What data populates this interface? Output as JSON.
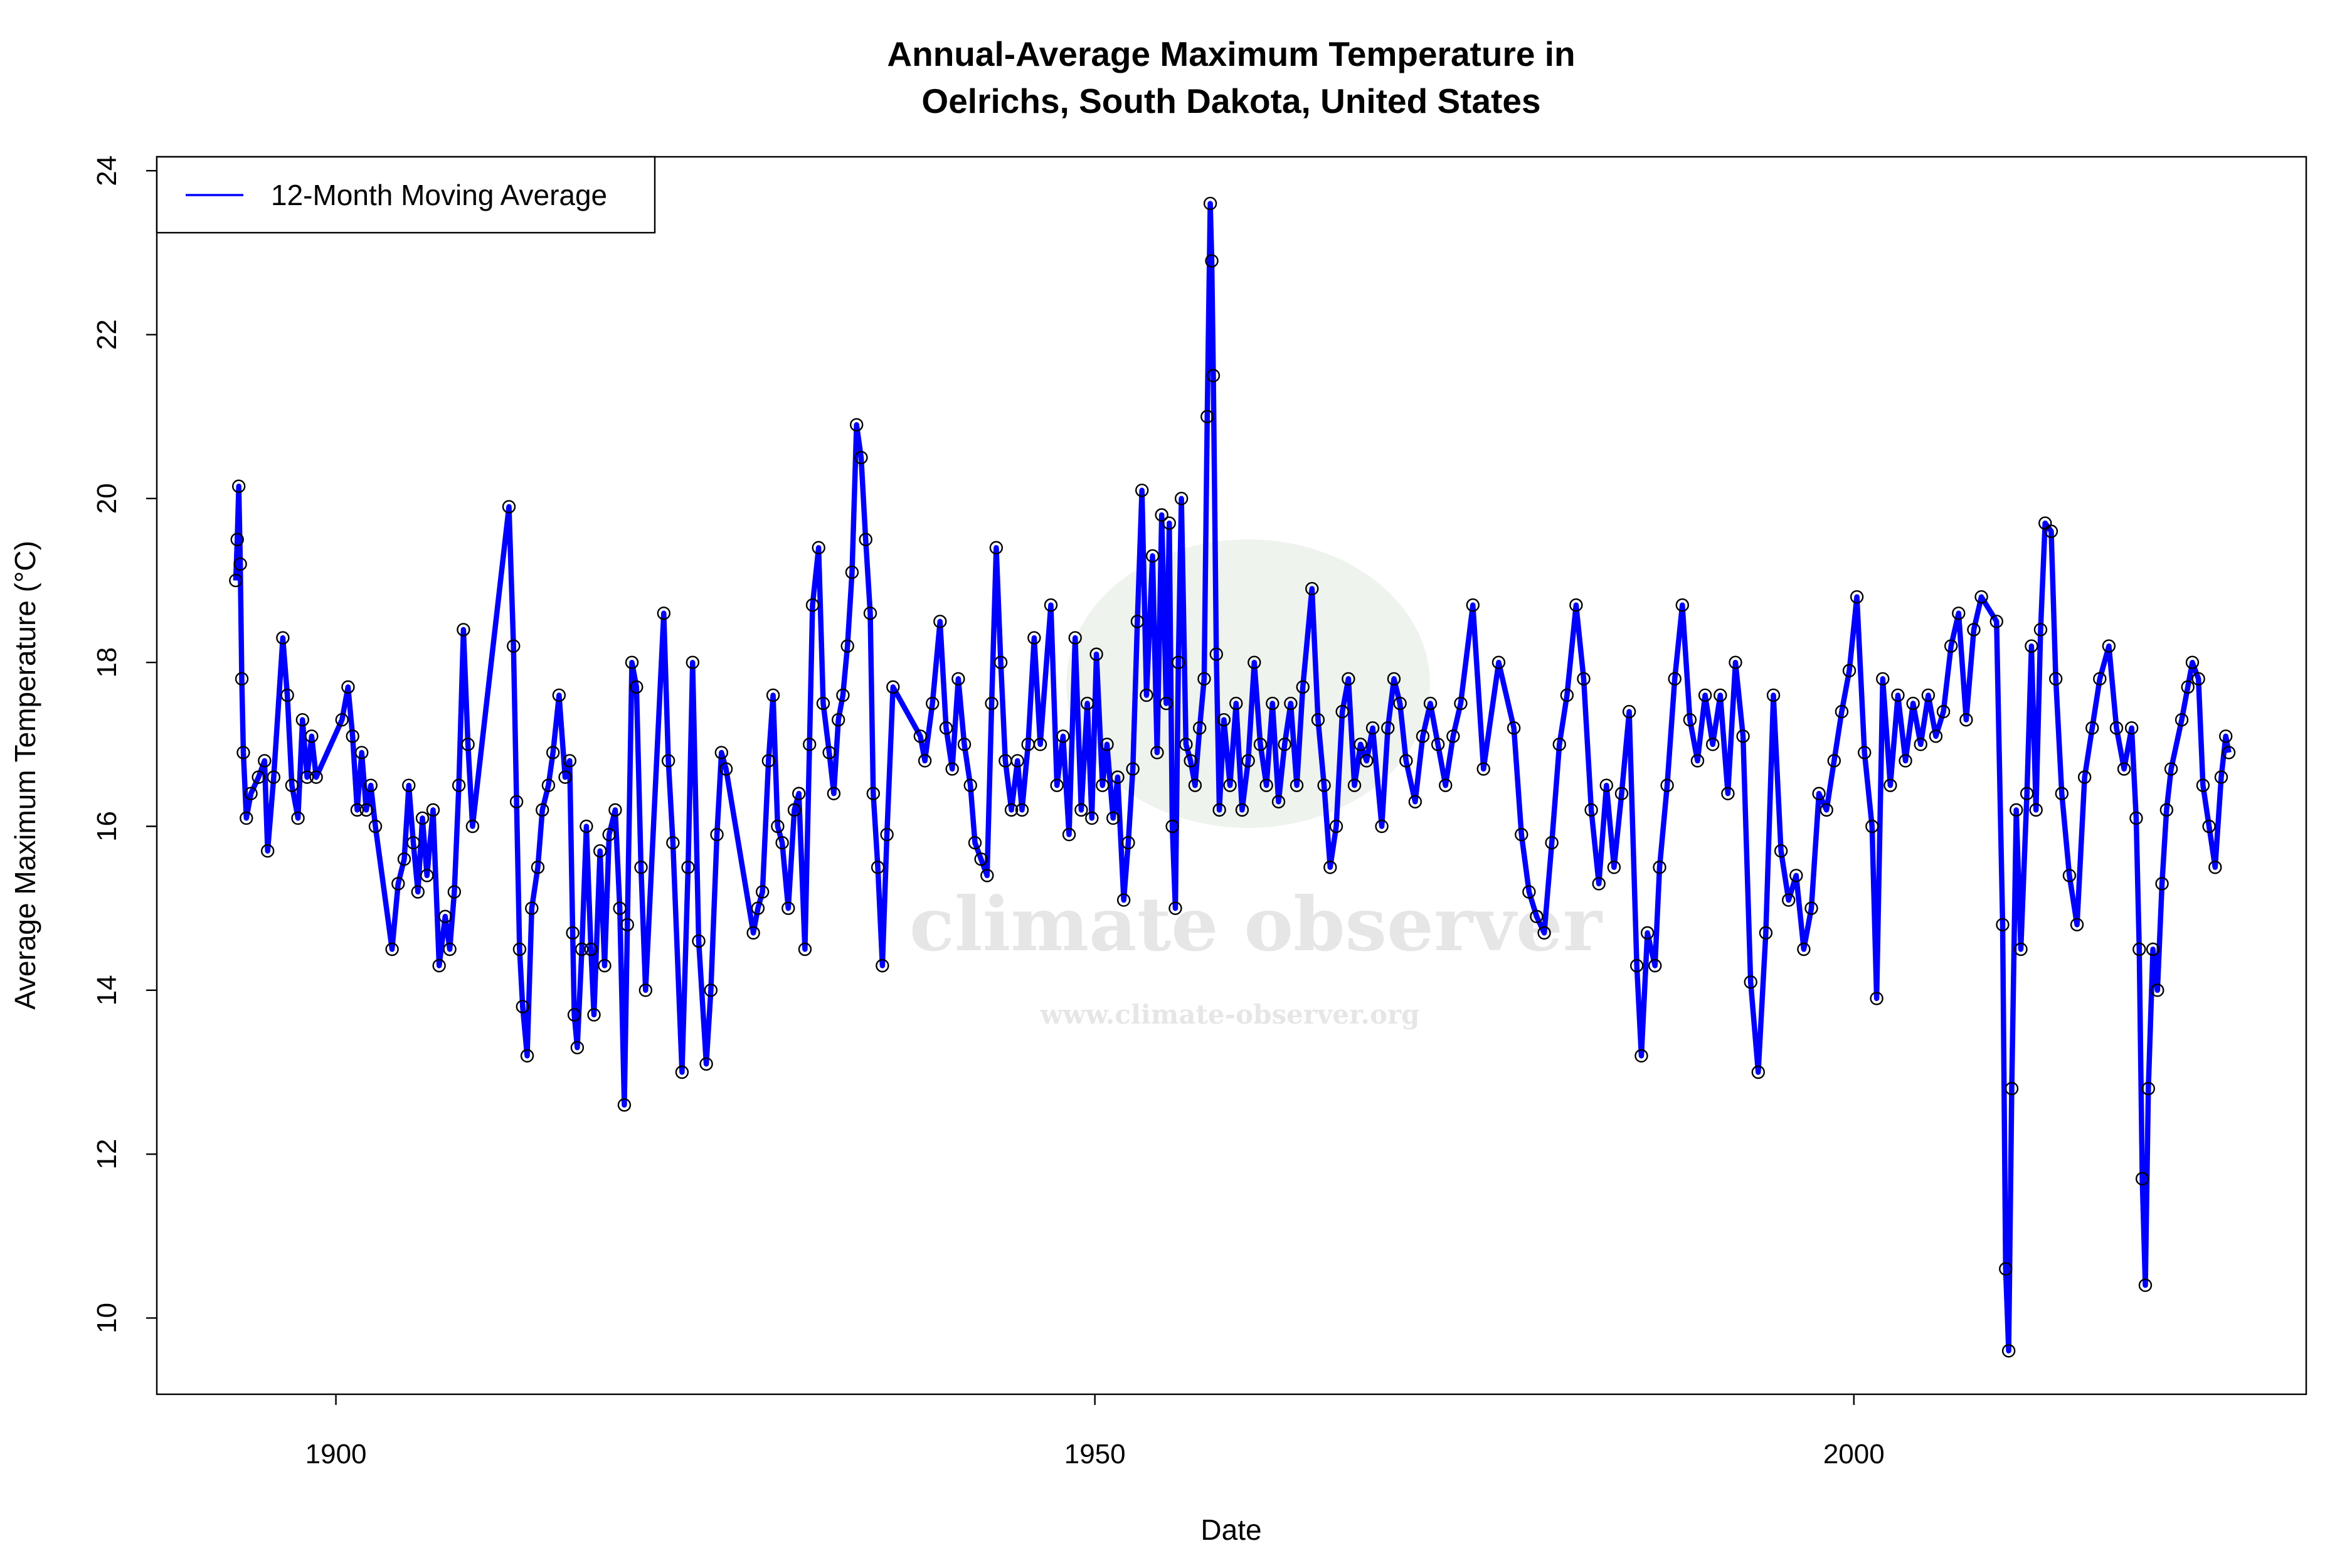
{
  "chart_data": {
    "type": "line",
    "title": [
      "Annual-Average Maximum Temperature in",
      "Oelrichs, South Dakota, United States"
    ],
    "xlabel": "Date",
    "ylabel": "Average Maximum Temperature (°C)",
    "watermark": {
      "text": "climate observer",
      "url": "www.climate-observer.org"
    },
    "xlim": [
      1888.2,
      2029.8
    ],
    "ylim": [
      9.07,
      24.17
    ],
    "xticks": [
      1900,
      1950,
      2000
    ],
    "yticks": [
      10,
      12,
      14,
      16,
      18,
      20,
      22,
      24
    ],
    "grid": false,
    "legend_position": "top-left",
    "marker_color": "#000000",
    "x": [
      1893.4,
      1893.5,
      1893.6,
      1893.7,
      1893.8,
      1893.9,
      1894.1,
      1894.4,
      1894.9,
      1895.3,
      1895.5,
      1895.9,
      1896.5,
      1896.8,
      1897.1,
      1897.5,
      1897.8,
      1898.1,
      1898.4,
      1898.7,
      1900.4,
      1900.8,
      1901.1,
      1901.4,
      1901.7,
      1902.0,
      1902.3,
      1902.6,
      1903.7,
      1904.1,
      1904.5,
      1904.8,
      1905.1,
      1905.4,
      1905.7,
      1906.0,
      1906.4,
      1906.8,
      1907.2,
      1907.5,
      1907.8,
      1908.1,
      1908.4,
      1908.7,
      1909.0,
      1911.4,
      1911.7,
      1911.9,
      1912.1,
      1912.3,
      1912.6,
      1912.9,
      1913.3,
      1913.6,
      1914.0,
      1914.3,
      1914.7,
      1915.1,
      1915.4,
      1915.6,
      1915.7,
      1915.9,
      1916.2,
      1916.5,
      1916.8,
      1917.0,
      1917.4,
      1917.7,
      1918.0,
      1918.4,
      1918.7,
      1919.0,
      1919.2,
      1919.5,
      1919.8,
      1920.1,
      1920.4,
      1921.6,
      1921.9,
      1922.2,
      1922.8,
      1923.2,
      1923.5,
      1923.9,
      1924.4,
      1924.7,
      1925.1,
      1925.4,
      1925.7,
      1927.5,
      1927.8,
      1928.1,
      1928.5,
      1928.8,
      1929.1,
      1929.4,
      1929.8,
      1930.2,
      1930.5,
      1930.9,
      1931.2,
      1931.4,
      1931.8,
      1932.1,
      1932.5,
      1932.8,
      1933.1,
      1933.4,
      1933.7,
      1934.0,
      1934.3,
      1934.6,
      1934.9,
      1935.2,
      1935.4,
      1935.7,
      1936.0,
      1936.3,
      1936.7,
      1938.5,
      1938.8,
      1939.3,
      1939.8,
      1940.2,
      1940.6,
      1941.0,
      1941.4,
      1941.8,
      1942.1,
      1942.5,
      1942.9,
      1943.2,
      1943.5,
      1943.8,
      1944.1,
      1944.5,
      1944.9,
      1945.2,
      1945.6,
      1946.0,
      1946.4,
      1947.1,
      1947.5,
      1947.9,
      1948.3,
      1948.7,
      1949.1,
      1949.5,
      1949.8,
      1950.1,
      1950.5,
      1950.8,
      1951.2,
      1951.5,
      1951.9,
      1952.2,
      1952.5,
      1952.8,
      1953.1,
      1953.4,
      1953.8,
      1954.1,
      1954.4,
      1954.7,
      1954.9,
      1955.1,
      1955.3,
      1955.5,
      1955.7,
      1956.0,
      1956.3,
      1956.6,
      1956.9,
      1957.2,
      1957.4,
      1957.6,
      1957.7,
      1957.8,
      1958.0,
      1958.2,
      1958.5,
      1958.9,
      1959.3,
      1959.7,
      1960.1,
      1960.5,
      1960.9,
      1961.3,
      1961.7,
      1962.1,
      1962.5,
      1962.9,
      1963.3,
      1963.7,
      1964.3,
      1964.7,
      1965.1,
      1965.5,
      1965.9,
      1966.3,
      1966.7,
      1967.1,
      1967.5,
      1967.9,
      1968.3,
      1968.9,
      1969.3,
      1969.7,
      1970.1,
      1970.5,
      1971.1,
      1971.6,
      1972.1,
      1972.6,
      1973.1,
      1973.6,
      1974.1,
      1974.9,
      1975.6,
      1976.6,
      1977.6,
      1978.1,
      1978.6,
      1979.1,
      1979.6,
      1980.1,
      1980.6,
      1981.1,
      1981.7,
      1982.2,
      1982.7,
      1983.2,
      1983.7,
      1984.2,
      1984.7,
      1985.2,
      1985.7,
      1986.0,
      1986.4,
      1986.9,
      1987.2,
      1987.7,
      1988.2,
      1988.7,
      1989.2,
      1989.7,
      1990.2,
      1990.7,
      1991.2,
      1991.7,
      1992.2,
      1992.7,
      1993.2,
      1993.7,
      1994.2,
      1994.7,
      1995.2,
      1995.7,
      1996.2,
      1996.7,
      1997.2,
      1997.7,
      1998.2,
      1998.7,
      1999.2,
      1999.7,
      2000.2,
      2000.7,
      2001.2,
      2001.5,
      2001.9,
      2002.4,
      2002.9,
      2003.4,
      2003.9,
      2004.4,
      2004.9,
      2005.4,
      2005.9,
      2006.4,
      2006.9,
      2007.4,
      2007.9,
      2008.4,
      2009.4,
      2009.8,
      2010.0,
      2010.2,
      2010.4,
      2010.7,
      2011.0,
      2011.4,
      2011.7,
      2012.0,
      2012.3,
      2012.6,
      2013.0,
      2013.3,
      2013.7,
      2014.2,
      2014.7,
      2015.2,
      2015.7,
      2016.2,
      2016.8,
      2017.3,
      2017.8,
      2018.3,
      2018.6,
      2018.8,
      2019.0,
      2019.2,
      2019.4,
      2019.7,
      2020.0,
      2020.3,
      2020.6,
      2020.9,
      2021.6,
      2022.0,
      2022.3,
      2022.7,
      2023.0,
      2023.4,
      2023.8,
      2024.2,
      2024.5,
      2024.7
    ],
    "series": [
      {
        "name": "12-Month Moving Average",
        "color": "#0000ff",
        "values": [
          19.0,
          19.5,
          20.15,
          19.2,
          17.8,
          16.9,
          16.1,
          16.4,
          16.6,
          16.8,
          15.7,
          16.6,
          18.3,
          17.6,
          16.5,
          16.1,
          17.3,
          16.6,
          17.1,
          16.6,
          17.3,
          17.7,
          17.1,
          16.2,
          16.9,
          16.2,
          16.5,
          16.0,
          14.5,
          15.3,
          15.6,
          16.5,
          15.8,
          15.2,
          16.1,
          15.4,
          16.2,
          14.3,
          14.9,
          14.5,
          15.2,
          16.5,
          18.4,
          17.0,
          16.0,
          19.9,
          18.2,
          16.3,
          14.5,
          13.8,
          13.2,
          15.0,
          15.5,
          16.2,
          16.5,
          16.9,
          17.6,
          16.6,
          16.8,
          14.7,
          13.7,
          13.3,
          14.5,
          16.0,
          14.5,
          13.7,
          15.7,
          14.3,
          15.9,
          16.2,
          15.0,
          12.6,
          14.8,
          18.0,
          17.7,
          15.5,
          14.0,
          18.6,
          16.8,
          15.8,
          13.0,
          15.5,
          18.0,
          14.6,
          13.1,
          14.0,
          15.9,
          16.9,
          16.7,
          14.7,
          15.0,
          15.2,
          16.8,
          17.6,
          16.0,
          15.8,
          15.0,
          16.2,
          16.4,
          14.5,
          17.0,
          18.7,
          19.4,
          17.5,
          16.9,
          16.4,
          17.3,
          17.6,
          18.2,
          19.1,
          20.9,
          20.5,
          19.5,
          18.6,
          16.4,
          15.5,
          14.3,
          15.9,
          17.7,
          17.1,
          16.8,
          17.5,
          18.5,
          17.2,
          16.7,
          17.8,
          17.0,
          16.5,
          15.8,
          15.6,
          15.4,
          17.5,
          19.4,
          18.0,
          16.8,
          16.2,
          16.8,
          16.2,
          17.0,
          18.3,
          17.0,
          18.7,
          16.5,
          17.1,
          15.9,
          18.3,
          16.2,
          17.5,
          16.1,
          18.1,
          16.5,
          17.0,
          16.1,
          16.6,
          15.1,
          15.8,
          16.7,
          18.5,
          20.1,
          17.6,
          19.3,
          16.9,
          19.8,
          17.5,
          19.7,
          16.0,
          15.0,
          18.0,
          20.0,
          17.0,
          16.8,
          16.5,
          17.2,
          17.8,
          21.0,
          23.6,
          22.9,
          21.5,
          18.1,
          16.2,
          17.3,
          16.5,
          17.5,
          16.2,
          16.8,
          18.0,
          17.0,
          16.5,
          17.5,
          16.3,
          17.0,
          17.5,
          16.5,
          17.7,
          18.9,
          17.3,
          16.5,
          15.5,
          16.0,
          17.4,
          17.8,
          16.5,
          17.0,
          16.8,
          17.2,
          16.0,
          17.2,
          17.8,
          17.5,
          16.8,
          16.3,
          17.1,
          17.5,
          17.0,
          16.5,
          17.1,
          17.5,
          18.7,
          16.7,
          18.0,
          17.2,
          15.9,
          15.2,
          14.9,
          14.7,
          15.8,
          17.0,
          17.6,
          18.7,
          17.8,
          16.2,
          15.3,
          16.5,
          15.5,
          16.4,
          17.4,
          14.3,
          13.2,
          14.7,
          14.3,
          15.5,
          16.5,
          17.8,
          18.7,
          17.3,
          16.8,
          17.6,
          17.0,
          17.6,
          16.4,
          18.0,
          17.1,
          14.1,
          13.0,
          14.7,
          17.6,
          15.7,
          15.1,
          15.4,
          14.5,
          15.0,
          16.4,
          16.2,
          16.8,
          17.4,
          17.9,
          18.8,
          16.9,
          16.0,
          13.9,
          17.8,
          16.5,
          17.6,
          16.8,
          17.5,
          17.0,
          17.6,
          17.1,
          17.4,
          18.2,
          18.6,
          17.3,
          18.4,
          18.8,
          18.5,
          14.8,
          10.6,
          9.6,
          12.8,
          16.2,
          14.5,
          16.4,
          18.2,
          16.2,
          18.4,
          19.7,
          19.6,
          17.8,
          16.4,
          15.4,
          14.8,
          16.6,
          17.2,
          17.8,
          18.2,
          17.2,
          16.7,
          17.2,
          16.1,
          14.5,
          11.7,
          10.4,
          12.8,
          14.5,
          14.0,
          15.3,
          16.2,
          16.7,
          17.3,
          17.7,
          18.0,
          17.8,
          16.5,
          16.0,
          15.5,
          16.6,
          17.1,
          16.9
        ]
      }
    ]
  }
}
